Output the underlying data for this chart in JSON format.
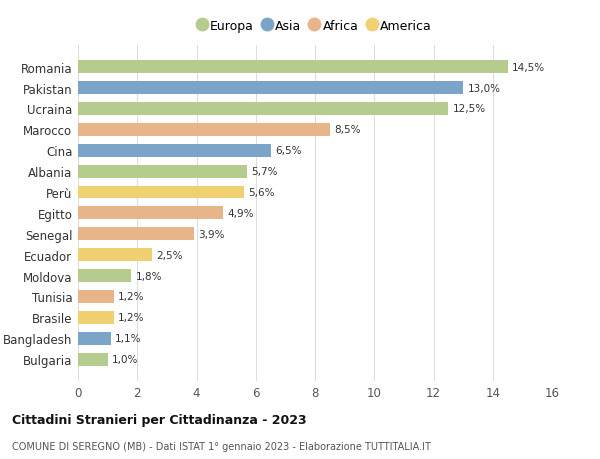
{
  "categories": [
    "Romania",
    "Pakistan",
    "Ucraina",
    "Marocco",
    "Cina",
    "Albania",
    "Perù",
    "Egitto",
    "Senegal",
    "Ecuador",
    "Moldova",
    "Tunisia",
    "Brasile",
    "Bangladesh",
    "Bulgaria"
  ],
  "values": [
    14.5,
    13.0,
    12.5,
    8.5,
    6.5,
    5.7,
    5.6,
    4.9,
    3.9,
    2.5,
    1.8,
    1.2,
    1.2,
    1.1,
    1.0
  ],
  "labels": [
    "14,5%",
    "13,0%",
    "12,5%",
    "8,5%",
    "6,5%",
    "5,7%",
    "5,6%",
    "4,9%",
    "3,9%",
    "2,5%",
    "1,8%",
    "1,2%",
    "1,2%",
    "1,1%",
    "1,0%"
  ],
  "continents": [
    "Europa",
    "Asia",
    "Europa",
    "Africa",
    "Asia",
    "Europa",
    "America",
    "Africa",
    "Africa",
    "America",
    "Europa",
    "Africa",
    "America",
    "Asia",
    "Europa"
  ],
  "continent_colors": {
    "Europa": "#b5cc8e",
    "Asia": "#7ca4c8",
    "Africa": "#e8b48a",
    "America": "#f0d070"
  },
  "legend_order": [
    "Europa",
    "Asia",
    "Africa",
    "America"
  ],
  "title": "Cittadini Stranieri per Cittadinanza - 2023",
  "subtitle": "COMUNE DI SEREGNO (MB) - Dati ISTAT 1° gennaio 2023 - Elaborazione TUTTITALIA.IT",
  "xlim": [
    0,
    16
  ],
  "xticks": [
    0,
    2,
    4,
    6,
    8,
    10,
    12,
    14,
    16
  ],
  "background_color": "#ffffff",
  "grid_color": "#dddddd",
  "bar_height": 0.62
}
